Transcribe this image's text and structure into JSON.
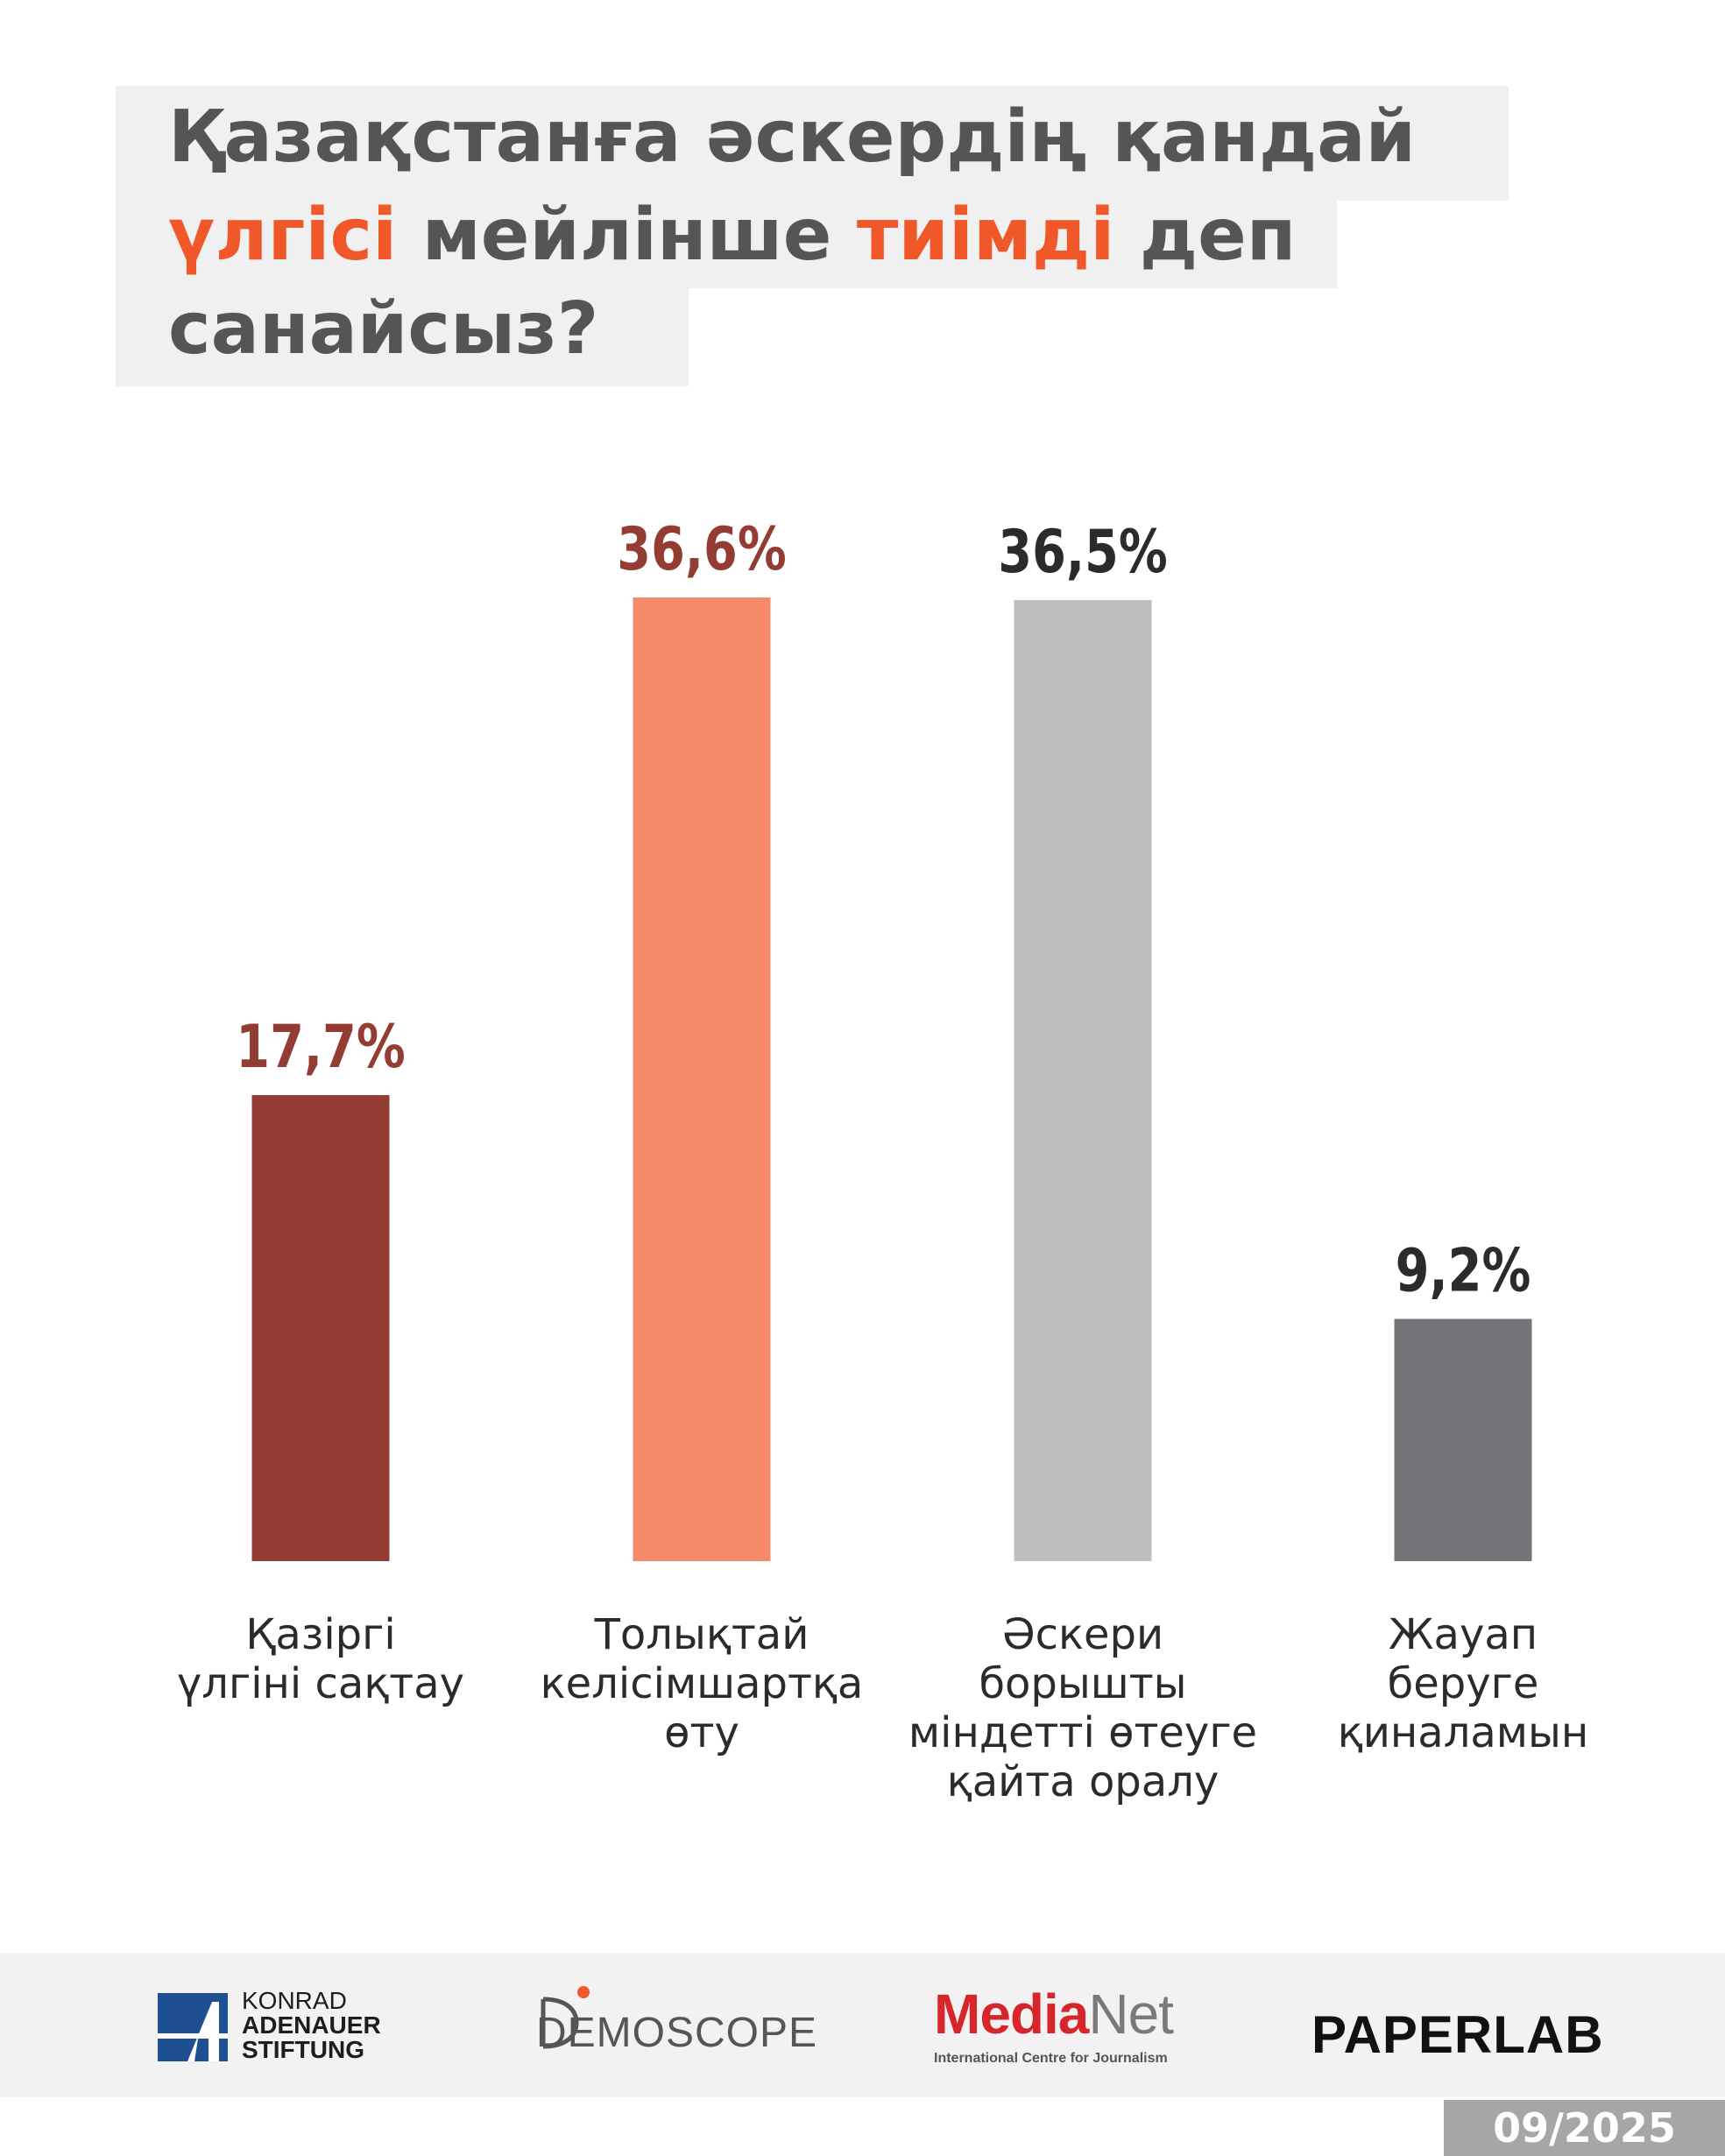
{
  "title": {
    "line1": "Қазақстанға әскердің қандай",
    "line2_highlight1": "үлгісі",
    "line2_mid": " мейлінше ",
    "line2_highlight2": "тиімді",
    "line2_end": " деп",
    "line3": "санайсыз?"
  },
  "colors": {
    "title_text": "#555555",
    "highlight": "#f0582a",
    "title_bg": "#f0f0f0"
  },
  "chart_data": {
    "type": "bar",
    "categories": [
      "Қазіргі үлгіні сақтау",
      "Толықтай келісімшартқа өту",
      "Әскери борышты міндетті өтеуге қайта оралу",
      "Жауап беруге қиналамын"
    ],
    "values": [
      17.7,
      36.6,
      36.5,
      9.2
    ],
    "value_labels": [
      "17,7%",
      "36,6%",
      "36,5%",
      "9,2%"
    ],
    "bar_colors": [
      "#933c33",
      "#f58b6b",
      "#bebebf",
      "#747578"
    ],
    "label_colors": [
      "#933c33",
      "#933c33",
      "#2b2b2b",
      "#2b2b2b"
    ],
    "ylim": [
      0,
      40
    ],
    "grid": false
  },
  "labels": [
    [
      "Қазіргі",
      "үлгіні сақтау"
    ],
    [
      "Толықтай",
      "келісімшартқа",
      "өту"
    ],
    [
      "Әскери",
      "борышты",
      "міндетті өтеуге",
      "қайта оралу"
    ],
    [
      "Жауап",
      "беруге",
      "қиналамын"
    ]
  ],
  "footer": {
    "kas": [
      "KONRAD",
      "ADENAUER",
      "STIFTUNG"
    ],
    "demoscope": "DEMOSCOPE",
    "medianet_media": "Media",
    "medianet_net": "Net",
    "medianet_sub": "International Centre for Journalism",
    "paperlab": "PAPERLAB",
    "date": "09/2025"
  }
}
